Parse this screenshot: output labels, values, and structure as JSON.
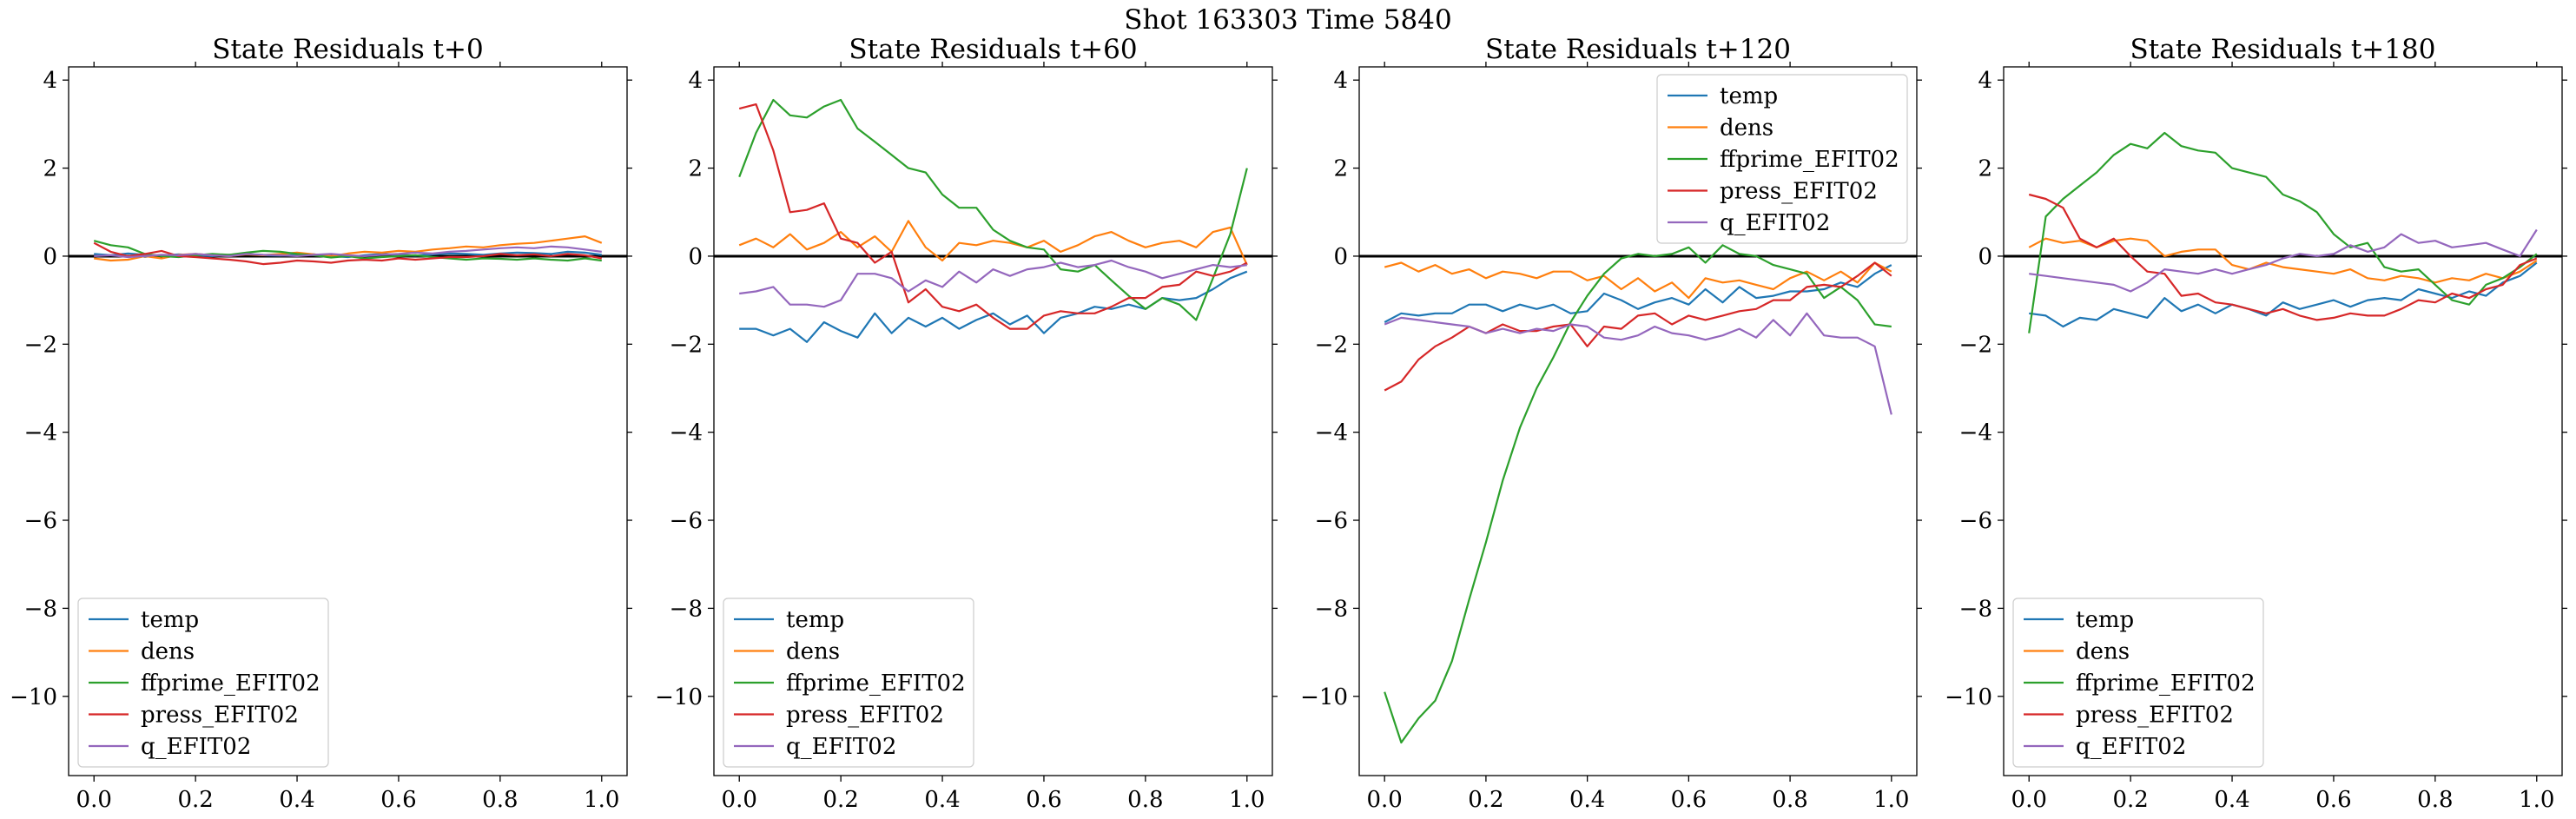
{
  "figure": {
    "suptitle": "Shot 163303   Time 5840"
  },
  "colors": {
    "temp": "#1f77b4",
    "dens": "#ff7f0e",
    "ffprime_EFIT02": "#2ca02c",
    "press_EFIT02": "#d62728",
    "q_EFIT02": "#9467bd",
    "zero_line": "#000000"
  },
  "chart_data": [
    {
      "type": "line",
      "title": "State Residuals t+0",
      "xlim": [
        -0.05,
        1.05
      ],
      "ylim": [
        -11.8,
        4.3
      ],
      "xticks": [
        0.0,
        0.2,
        0.4,
        0.6,
        0.8,
        1.0
      ],
      "xtick_labels": [
        "0.0",
        "0.2",
        "0.4",
        "0.6",
        "0.8",
        "1.0"
      ],
      "yticks": [
        4,
        2,
        0,
        -2,
        -4,
        -6,
        -8,
        -10
      ],
      "ytick_labels": [
        "4",
        "2",
        "0",
        "−2",
        "−4",
        "−6",
        "−8",
        "−10"
      ],
      "legend_loc": "lower left",
      "hline": 0,
      "x": [
        0.0,
        0.033,
        0.067,
        0.1,
        0.133,
        0.167,
        0.2,
        0.233,
        0.267,
        0.3,
        0.333,
        0.367,
        0.4,
        0.433,
        0.467,
        0.5,
        0.533,
        0.567,
        0.6,
        0.633,
        0.667,
        0.7,
        0.733,
        0.767,
        0.8,
        0.833,
        0.867,
        0.9,
        0.933,
        0.967,
        1.0
      ],
      "series": [
        {
          "name": "temp",
          "values": [
            0.05,
            0.02,
            0.06,
            0.03,
            0.01,
            0.04,
            0.02,
            0.0,
            0.03,
            0.05,
            0.02,
            0.01,
            0.03,
            0.04,
            0.0,
            -0.02,
            0.02,
            0.05,
            0.03,
            0.01,
            0.04,
            0.06,
            0.05,
            0.03,
            0.06,
            0.08,
            0.07,
            0.05,
            0.1,
            0.08,
            0.03
          ]
        },
        {
          "name": "dens",
          "values": [
            -0.05,
            -0.1,
            -0.08,
            0.0,
            -0.05,
            0.03,
            0.05,
            0.02,
            0.0,
            0.04,
            0.02,
            0.05,
            0.08,
            0.04,
            0.0,
            0.06,
            0.1,
            0.08,
            0.12,
            0.1,
            0.15,
            0.18,
            0.22,
            0.2,
            0.25,
            0.28,
            0.3,
            0.35,
            0.4,
            0.45,
            0.3
          ]
        },
        {
          "name": "ffprime_EFIT02",
          "values": [
            0.35,
            0.25,
            0.2,
            0.05,
            0.0,
            -0.02,
            0.02,
            0.05,
            0.03,
            0.08,
            0.12,
            0.1,
            0.05,
            0.02,
            -0.03,
            0.0,
            -0.05,
            -0.02,
            0.0,
            0.02,
            -0.02,
            -0.05,
            -0.08,
            -0.05,
            -0.06,
            -0.08,
            -0.05,
            -0.08,
            -0.1,
            -0.05,
            -0.1
          ]
        },
        {
          "name": "press_EFIT02",
          "values": [
            0.3,
            0.1,
            0.0,
            0.05,
            0.12,
            0.0,
            -0.02,
            -0.05,
            -0.08,
            -0.12,
            -0.18,
            -0.15,
            -0.1,
            -0.12,
            -0.15,
            -0.1,
            -0.08,
            -0.1,
            -0.05,
            -0.08,
            -0.05,
            -0.02,
            -0.02,
            0.0,
            0.05,
            0.02,
            0.04,
            0.0,
            0.05,
            0.02,
            -0.05
          ]
        },
        {
          "name": "q_EFIT02",
          "values": [
            0.0,
            0.02,
            -0.02,
            0.0,
            0.03,
            0.02,
            0.05,
            0.02,
            0.0,
            0.05,
            0.03,
            0.02,
            0.0,
            0.03,
            0.05,
            0.02,
            0.0,
            0.03,
            0.05,
            0.08,
            0.06,
            0.1,
            0.12,
            0.15,
            0.18,
            0.2,
            0.18,
            0.22,
            0.2,
            0.15,
            0.1
          ]
        }
      ]
    },
    {
      "type": "line",
      "title": "State Residuals t+60",
      "xlim": [
        -0.05,
        1.05
      ],
      "ylim": [
        -11.8,
        4.3
      ],
      "xticks": [
        0.0,
        0.2,
        0.4,
        0.6,
        0.8,
        1.0
      ],
      "xtick_labels": [
        "0.0",
        "0.2",
        "0.4",
        "0.6",
        "0.8",
        "1.0"
      ],
      "yticks": [
        4,
        2,
        0,
        -2,
        -4,
        -6,
        -8,
        -10
      ],
      "ytick_labels": [
        "4",
        "2",
        "0",
        "−2",
        "−4",
        "−6",
        "−8",
        "−10"
      ],
      "legend_loc": "lower left",
      "hline": 0,
      "x": [
        0.0,
        0.033,
        0.067,
        0.1,
        0.133,
        0.167,
        0.2,
        0.233,
        0.267,
        0.3,
        0.333,
        0.367,
        0.4,
        0.433,
        0.467,
        0.5,
        0.533,
        0.567,
        0.6,
        0.633,
        0.667,
        0.7,
        0.733,
        0.767,
        0.8,
        0.833,
        0.867,
        0.9,
        0.933,
        0.967,
        1.0
      ],
      "series": [
        {
          "name": "temp",
          "values": [
            -1.65,
            -1.65,
            -1.8,
            -1.65,
            -1.95,
            -1.5,
            -1.7,
            -1.85,
            -1.3,
            -1.75,
            -1.4,
            -1.6,
            -1.4,
            -1.65,
            -1.45,
            -1.3,
            -1.55,
            -1.35,
            -1.75,
            -1.4,
            -1.3,
            -1.15,
            -1.2,
            -1.1,
            -1.2,
            -0.95,
            -1.0,
            -0.95,
            -0.75,
            -0.5,
            -0.35
          ]
        },
        {
          "name": "dens",
          "values": [
            0.25,
            0.4,
            0.2,
            0.5,
            0.15,
            0.3,
            0.55,
            0.2,
            0.45,
            0.1,
            0.8,
            0.2,
            -0.1,
            0.3,
            0.25,
            0.35,
            0.3,
            0.2,
            0.35,
            0.1,
            0.25,
            0.45,
            0.55,
            0.35,
            0.2,
            0.3,
            0.35,
            0.2,
            0.55,
            0.65,
            -0.2
          ]
        },
        {
          "name": "ffprime_EFIT02",
          "values": [
            1.8,
            2.8,
            3.55,
            3.2,
            3.15,
            3.4,
            3.55,
            2.9,
            2.6,
            2.3,
            2.0,
            1.9,
            1.4,
            1.1,
            1.1,
            0.6,
            0.35,
            0.2,
            0.15,
            -0.3,
            -0.35,
            -0.2,
            -0.55,
            -0.9,
            -1.2,
            -0.95,
            -1.1,
            -1.45,
            -0.5,
            0.5,
            2.0
          ]
        },
        {
          "name": "press_EFIT02",
          "values": [
            3.35,
            3.45,
            2.4,
            1.0,
            1.05,
            1.2,
            0.4,
            0.3,
            -0.15,
            0.1,
            -1.05,
            -0.75,
            -1.15,
            -1.25,
            -1.1,
            -1.4,
            -1.65,
            -1.65,
            -1.35,
            -1.25,
            -1.3,
            -1.3,
            -1.15,
            -0.95,
            -0.95,
            -0.7,
            -0.65,
            -0.35,
            -0.45,
            -0.35,
            -0.15
          ]
        },
        {
          "name": "q_EFIT02",
          "values": [
            -0.85,
            -0.8,
            -0.7,
            -1.1,
            -1.1,
            -1.15,
            -1.0,
            -0.4,
            -0.4,
            -0.5,
            -0.8,
            -0.55,
            -0.7,
            -0.35,
            -0.6,
            -0.3,
            -0.45,
            -0.3,
            -0.25,
            -0.15,
            -0.25,
            -0.2,
            -0.1,
            -0.25,
            -0.35,
            -0.5,
            -0.4,
            -0.3,
            -0.2,
            -0.25,
            -0.2
          ]
        }
      ]
    },
    {
      "type": "line",
      "title": "State Residuals t+120",
      "xlim": [
        -0.05,
        1.05
      ],
      "ylim": [
        -11.8,
        4.3
      ],
      "xticks": [
        0.0,
        0.2,
        0.4,
        0.6,
        0.8,
        1.0
      ],
      "xtick_labels": [
        "0.0",
        "0.2",
        "0.4",
        "0.6",
        "0.8",
        "1.0"
      ],
      "yticks": [
        4,
        2,
        0,
        -2,
        -4,
        -6,
        -8,
        -10
      ],
      "ytick_labels": [
        "4",
        "2",
        "0",
        "−2",
        "−4",
        "−6",
        "−8",
        "−10"
      ],
      "legend_loc": "upper right",
      "hline": 0,
      "x": [
        0.0,
        0.033,
        0.067,
        0.1,
        0.133,
        0.167,
        0.2,
        0.233,
        0.267,
        0.3,
        0.333,
        0.367,
        0.4,
        0.433,
        0.467,
        0.5,
        0.533,
        0.567,
        0.6,
        0.633,
        0.667,
        0.7,
        0.733,
        0.767,
        0.8,
        0.833,
        0.867,
        0.9,
        0.933,
        0.967,
        1.0
      ],
      "series": [
        {
          "name": "temp",
          "values": [
            -1.5,
            -1.3,
            -1.35,
            -1.3,
            -1.3,
            -1.1,
            -1.1,
            -1.25,
            -1.1,
            -1.2,
            -1.1,
            -1.3,
            -1.25,
            -0.85,
            -1.0,
            -1.2,
            -1.05,
            -0.95,
            -1.1,
            -0.75,
            -1.05,
            -0.7,
            -0.95,
            -0.9,
            -0.8,
            -0.8,
            -0.75,
            -0.6,
            -0.7,
            -0.4,
            -0.2
          ]
        },
        {
          "name": "dens",
          "values": [
            -0.25,
            -0.15,
            -0.35,
            -0.2,
            -0.4,
            -0.3,
            -0.5,
            -0.35,
            -0.4,
            -0.5,
            -0.35,
            -0.35,
            -0.55,
            -0.45,
            -0.75,
            -0.5,
            -0.8,
            -0.6,
            -0.95,
            -0.5,
            -0.6,
            -0.55,
            -0.65,
            -0.75,
            -0.5,
            -0.35,
            -0.55,
            -0.35,
            -0.6,
            -0.15,
            -0.35
          ]
        },
        {
          "name": "ffprime_EFIT02",
          "values": [
            -9.9,
            -11.05,
            -10.5,
            -10.1,
            -9.2,
            -7.8,
            -6.5,
            -5.1,
            -3.9,
            -3.0,
            -2.3,
            -1.5,
            -0.9,
            -0.4,
            -0.05,
            0.05,
            0.0,
            0.05,
            0.2,
            -0.15,
            0.25,
            0.05,
            0.0,
            -0.2,
            -0.3,
            -0.4,
            -0.95,
            -0.7,
            -1.0,
            -1.55,
            -1.6
          ]
        },
        {
          "name": "press_EFIT02",
          "values": [
            -3.05,
            -2.85,
            -2.35,
            -2.05,
            -1.85,
            -1.6,
            -1.75,
            -1.55,
            -1.7,
            -1.7,
            -1.6,
            -1.55,
            -2.05,
            -1.6,
            -1.65,
            -1.35,
            -1.3,
            -1.55,
            -1.35,
            -1.45,
            -1.35,
            -1.25,
            -1.2,
            -1.0,
            -1.0,
            -0.7,
            -0.65,
            -0.7,
            -0.45,
            -0.15,
            -0.45
          ]
        },
        {
          "name": "q_EFIT02",
          "values": [
            -1.55,
            -1.4,
            -1.45,
            -1.5,
            -1.55,
            -1.6,
            -1.75,
            -1.65,
            -1.75,
            -1.65,
            -1.7,
            -1.55,
            -1.6,
            -1.85,
            -1.9,
            -1.8,
            -1.6,
            -1.75,
            -1.8,
            -1.9,
            -1.8,
            -1.65,
            -1.85,
            -1.45,
            -1.8,
            -1.3,
            -1.8,
            -1.85,
            -1.85,
            -2.05,
            -3.6
          ]
        }
      ]
    },
    {
      "type": "line",
      "title": "State Residuals t+180",
      "xlim": [
        -0.05,
        1.05
      ],
      "ylim": [
        -11.8,
        4.3
      ],
      "xticks": [
        0.0,
        0.2,
        0.4,
        0.6,
        0.8,
        1.0
      ],
      "xtick_labels": [
        "0.0",
        "0.2",
        "0.4",
        "0.6",
        "0.8",
        "1.0"
      ],
      "yticks": [
        4,
        2,
        0,
        -2,
        -4,
        -6,
        -8,
        -10
      ],
      "ytick_labels": [
        "4",
        "2",
        "0",
        "−2",
        "−4",
        "−6",
        "−8",
        "−10"
      ],
      "legend_loc": "lower left",
      "hline": 0,
      "x": [
        0.0,
        0.033,
        0.067,
        0.1,
        0.133,
        0.167,
        0.2,
        0.233,
        0.267,
        0.3,
        0.333,
        0.367,
        0.4,
        0.433,
        0.467,
        0.5,
        0.533,
        0.567,
        0.6,
        0.633,
        0.667,
        0.7,
        0.733,
        0.767,
        0.8,
        0.833,
        0.867,
        0.9,
        0.933,
        0.967,
        1.0
      ],
      "series": [
        {
          "name": "temp",
          "values": [
            -1.3,
            -1.35,
            -1.6,
            -1.4,
            -1.45,
            -1.2,
            -1.3,
            -1.4,
            -0.95,
            -1.25,
            -1.1,
            -1.3,
            -1.1,
            -1.2,
            -1.35,
            -1.05,
            -1.2,
            -1.1,
            -1.0,
            -1.15,
            -1.0,
            -0.95,
            -1.0,
            -0.75,
            -0.85,
            -0.95,
            -0.8,
            -0.9,
            -0.6,
            -0.45,
            -0.15
          ]
        },
        {
          "name": "dens",
          "values": [
            0.2,
            0.4,
            0.3,
            0.35,
            0.2,
            0.35,
            0.4,
            0.35,
            0.0,
            0.1,
            0.15,
            0.15,
            -0.2,
            -0.3,
            -0.15,
            -0.25,
            -0.3,
            -0.35,
            -0.4,
            -0.3,
            -0.5,
            -0.55,
            -0.45,
            -0.5,
            -0.6,
            -0.5,
            -0.55,
            -0.4,
            -0.5,
            -0.35,
            -0.1
          ]
        },
        {
          "name": "ffprime_EFIT02",
          "values": [
            -1.75,
            0.9,
            1.3,
            1.6,
            1.9,
            2.3,
            2.55,
            2.45,
            2.8,
            2.5,
            2.4,
            2.35,
            2.0,
            1.9,
            1.8,
            1.4,
            1.25,
            1.0,
            0.5,
            0.2,
            0.3,
            -0.25,
            -0.35,
            -0.3,
            -0.65,
            -1.0,
            -1.1,
            -0.65,
            -0.5,
            -0.25,
            0.05
          ]
        },
        {
          "name": "press_EFIT02",
          "values": [
            1.4,
            1.3,
            1.1,
            0.4,
            0.2,
            0.4,
            0.0,
            -0.35,
            -0.4,
            -0.9,
            -0.85,
            -1.05,
            -1.1,
            -1.2,
            -1.3,
            -1.2,
            -1.35,
            -1.45,
            -1.4,
            -1.3,
            -1.35,
            -1.35,
            -1.2,
            -1.0,
            -1.05,
            -0.85,
            -0.95,
            -0.75,
            -0.65,
            -0.2,
            -0.05
          ]
        },
        {
          "name": "q_EFIT02",
          "values": [
            -0.4,
            -0.45,
            -0.5,
            -0.55,
            -0.6,
            -0.65,
            -0.8,
            -0.6,
            -0.3,
            -0.35,
            -0.4,
            -0.3,
            -0.4,
            -0.3,
            -0.2,
            -0.05,
            0.05,
            0.0,
            0.05,
            0.25,
            0.1,
            0.2,
            0.5,
            0.3,
            0.35,
            0.2,
            0.25,
            0.3,
            0.15,
            0.0,
            0.6
          ]
        }
      ]
    }
  ]
}
